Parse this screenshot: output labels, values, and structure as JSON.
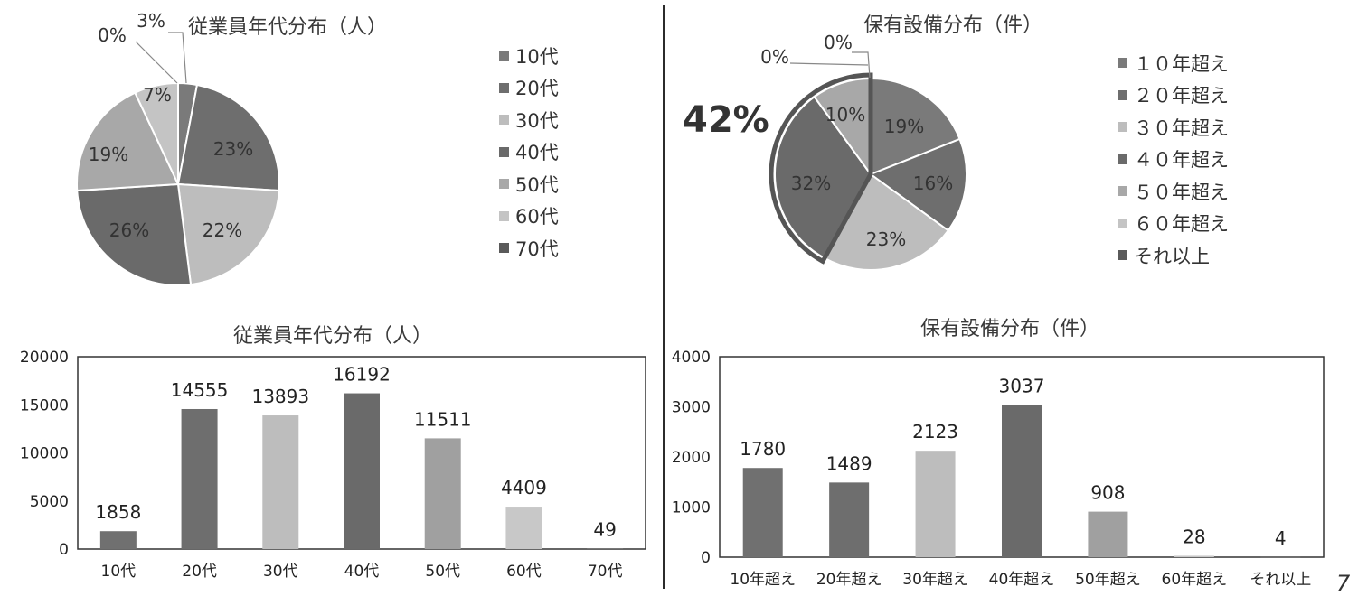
{
  "chart_data": [
    {
      "type": "pie",
      "title": "従業員年代分布（人）",
      "categories": [
        "10代",
        "20代",
        "30代",
        "40代",
        "50代",
        "60代",
        "70代"
      ],
      "values": [
        3,
        23,
        22,
        26,
        19,
        7,
        0
      ],
      "slice_labels": [
        "3%",
        "23%",
        "22%",
        "26%",
        "19%",
        "7%",
        "0%"
      ],
      "legend": [
        "10代",
        "20代",
        "30代",
        "40代",
        "50代",
        "60代",
        "70代"
      ],
      "colors": [
        "#7a7a7a",
        "#6e6e6e",
        "#bdbdbd",
        "#6a6a6a",
        "#a8a8a8",
        "#c4c4c4",
        "#5a5a5a"
      ]
    },
    {
      "type": "pie",
      "title": "保有設備分布（件）",
      "categories": [
        "１０年超え",
        "２０年超え",
        "３０年超え",
        "４０年超え",
        "５０年超え",
        "６０年超え",
        "それ以上"
      ],
      "values": [
        19,
        16,
        23,
        32,
        10,
        0,
        0
      ],
      "slice_labels": [
        "19%",
        "16%",
        "23%",
        "32%",
        "10%",
        "0%",
        "0%"
      ],
      "legend": [
        "１０年超え",
        "２０年超え",
        "３０年超え",
        "４０年超え",
        "５０年超え",
        "６０年超え",
        "それ以上"
      ],
      "annotation": "42%",
      "colors": [
        "#7a7a7a",
        "#6e6e6e",
        "#bdbdbd",
        "#6a6a6a",
        "#a8a8a8",
        "#c4c4c4",
        "#5a5a5a"
      ]
    },
    {
      "type": "bar",
      "title": "従業員年代分布（人）",
      "categories": [
        "10代",
        "20代",
        "30代",
        "40代",
        "50代",
        "60代",
        "70代"
      ],
      "values": [
        1858,
        14555,
        13893,
        16192,
        11511,
        4409,
        49
      ],
      "ylim": [
        0,
        20000
      ],
      "yticks": [
        0,
        5000,
        10000,
        15000,
        20000
      ],
      "colors": [
        "#707070",
        "#6e6e6e",
        "#bdbdbd",
        "#6a6a6a",
        "#a0a0a0",
        "#c8c8c8",
        "#5a5a5a"
      ]
    },
    {
      "type": "bar",
      "title": "保有設備分布（件）",
      "categories": [
        "10年超え",
        "20年超え",
        "30年超え",
        "40年超え",
        "50年超え",
        "60年超え",
        "それ以上"
      ],
      "values": [
        1780,
        1489,
        2123,
        3037,
        908,
        28,
        4
      ],
      "ylim": [
        0,
        4000
      ],
      "yticks": [
        0,
        1000,
        2000,
        3000,
        4000
      ],
      "colors": [
        "#707070",
        "#6e6e6e",
        "#bdbdbd",
        "#6a6a6a",
        "#a0a0a0",
        "#c8c8c8",
        "#5a5a5a"
      ]
    }
  ],
  "page_number": "7"
}
